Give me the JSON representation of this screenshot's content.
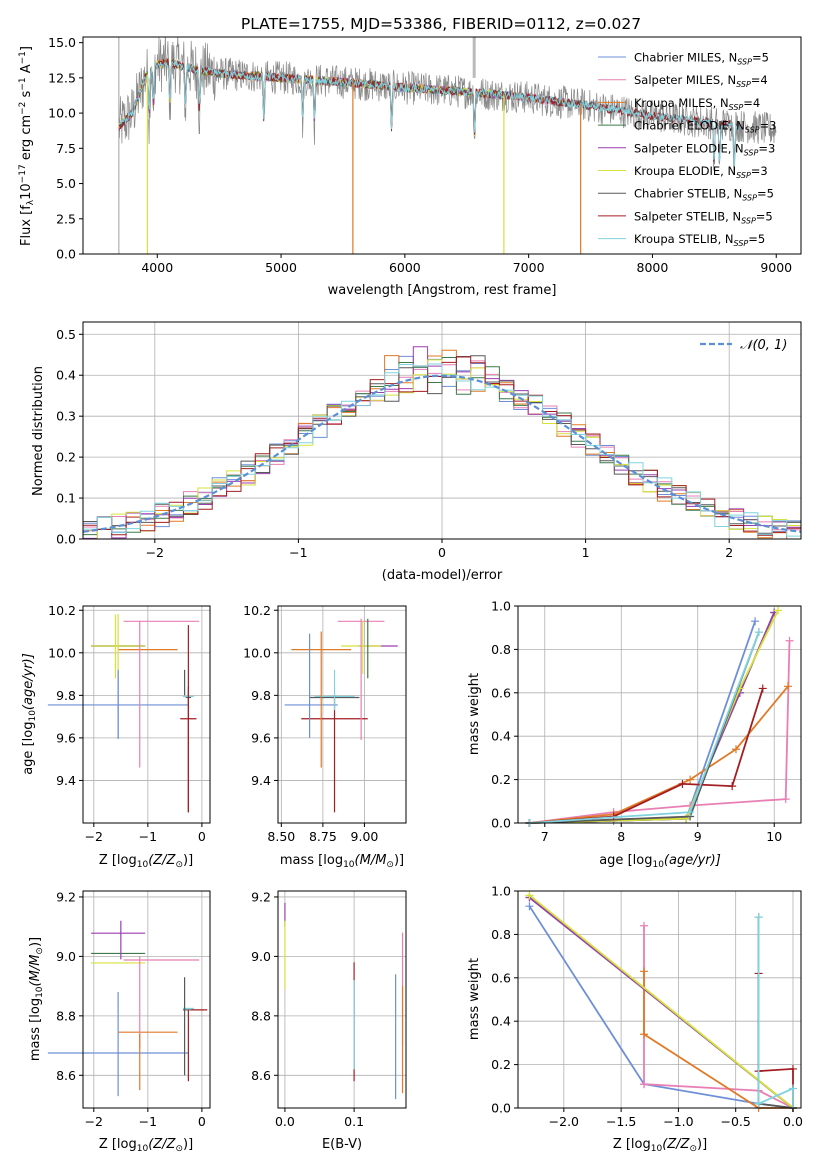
{
  "title": "PLATE=1755, MJD=53386, FIBERID=0112, z=0.027",
  "colors": {
    "Chabrier MILES": "#6e8fd8",
    "Salpeter MILES": "#e87fb4",
    "Kroupa MILES": "#e07a26",
    "Chabrier ELODIE": "#3f7a4a",
    "Salpeter ELODIE": "#9a3fb0",
    "Kroupa ELODIE": "#d6e23b",
    "Chabrier STELIB": "#595959",
    "Salpeter STELIB": "#a31e22",
    "Kroupa STELIB": "#7fd3df",
    "normal": "#5b8fd6",
    "data": "#888888"
  },
  "chart_data": [
    {
      "type": "line",
      "title": "PLATE=1755, MJD=53386, FIBERID=0112, z=0.027",
      "xlabel": "wavelength [Angstrom, rest frame]",
      "ylabel_main": "Flux [f",
      "ylabel_sub_lambda": "λ",
      "ylabel_mid": "10",
      "ylabel_exp1": "−17",
      "ylabel_rest": " erg cm",
      "ylabel_exp2": "−2",
      "ylabel_s": " s",
      "ylabel_exp3": "−1",
      "ylabel_A": " A",
      "ylabel_exp4": "−1",
      "ylabel_end": "]",
      "xlim": [
        3400,
        9200
      ],
      "ylim": [
        0,
        15.4
      ],
      "xticks": [
        "4000",
        "5000",
        "6000",
        "7000",
        "8000",
        "9000"
      ],
      "yticks": [
        "0.0",
        "2.5",
        "5.0",
        "7.5",
        "10.0",
        "12.5",
        "15.0"
      ],
      "grid": false,
      "legend_position": "top-right",
      "continuum_anchors": {
        "x": [
          3690,
          3800,
          3900,
          4000,
          4100,
          4300,
          4500,
          5000,
          5500,
          6000,
          6500,
          7000,
          7500,
          8000,
          8500,
          9000
        ],
        "y": [
          9.0,
          10.0,
          12.5,
          13.5,
          13.6,
          13.1,
          12.8,
          12.5,
          12.2,
          11.8,
          11.5,
          11.1,
          10.5,
          9.8,
          9.3,
          8.8
        ]
      },
      "absorption_lines_x": [
        3934,
        3969,
        4102,
        4227,
        4340,
        4861,
        5175,
        5270,
        5893,
        6563,
        8498,
        8542,
        8662
      ],
      "series": [
        {
          "name": "Chabrier MILES",
          "sub": "SSP",
          "n": "5",
          "xmax": 7400
        },
        {
          "name": "Salpeter MILES",
          "sub": "SSP",
          "n": "4",
          "xmax": 7400
        },
        {
          "name": "Kroupa MILES",
          "sub": "SSP",
          "n": "4",
          "xmax": 7420
        },
        {
          "name": "Chabrier ELODIE",
          "sub": "SSP",
          "n": "3",
          "xmax": 6800
        },
        {
          "name": "Salpeter ELODIE",
          "sub": "SSP",
          "n": "3",
          "xmax": 6800
        },
        {
          "name": "Kroupa ELODIE",
          "sub": "SSP",
          "n": "3",
          "xmax": 6800
        },
        {
          "name": "Chabrier STELIB",
          "sub": "SSP",
          "n": "5",
          "xmax": 8700
        },
        {
          "name": "Salpeter STELIB",
          "sub": "SSP",
          "n": "5",
          "xmax": 8700
        },
        {
          "name": "Kroupa STELIB",
          "sub": "SSP",
          "n": "5",
          "xmax": 8700
        }
      ]
    },
    {
      "type": "line",
      "xlabel": "(data-model)/error",
      "ylabel": "Normed distribution",
      "xlim": [
        -2.5,
        2.5
      ],
      "ylim": [
        0,
        0.53
      ],
      "xticks": [
        "−2",
        "−1",
        "0",
        "1",
        "2"
      ],
      "yticks": [
        "0.0",
        "0.1",
        "0.2",
        "0.3",
        "0.4",
        "0.5"
      ],
      "grid": true,
      "legend_position": "top-right",
      "legend_label": "𝒩(0, 1)",
      "bin_width": 0.1,
      "histograms": "step histograms for 9 model fits, approximately matching a standard normal"
    },
    {
      "type": "scatter",
      "xlabel": "Z [log",
      "xlabel_sub": "10",
      "xlabel_rest": "(Z/Z",
      "xlabel_sun": "⊙",
      "xlabel_end": ")]",
      "ylabel": "age  [log",
      "ylabel_sub": "10",
      "ylabel_rest": "(age/yr)]",
      "xlim": [
        -2.2,
        0.15
      ],
      "ylim": [
        9.2,
        10.22
      ],
      "xticks": [
        "−2",
        "−1",
        "0"
      ],
      "yticks": [
        "9.4",
        "9.6",
        "9.8",
        "10.0",
        "10.2"
      ],
      "points": [
        {
          "model": "Chabrier MILES",
          "x": -1.55,
          "xerr": 1.3,
          "y": 9.755,
          "yerr": 0.16
        },
        {
          "model": "Salpeter MILES",
          "x": -0.75,
          "xerr": 0.7,
          "y": 10.148,
          "yerr": 0.0
        },
        {
          "model": "Kroupa MILES",
          "x": -1.0,
          "xerr": 0.55,
          "y": 10.015,
          "yerr": 0.0
        },
        {
          "model": "Chabrier ELODIE",
          "x": -1.55,
          "xerr": 0.5,
          "y": 10.032,
          "yerr": 0.0
        },
        {
          "model": "Salpeter ELODIE",
          "x": -1.55,
          "xerr": 0.5,
          "y": 10.032,
          "yerr": 0.0
        },
        {
          "model": "Kroupa ELODIE",
          "x": -1.55,
          "xerr": 0.5,
          "y": 10.032,
          "yerr": 0.15
        },
        {
          "model": "Chabrier STELIB",
          "x": -0.25,
          "xerr": 0.05,
          "y": 9.79,
          "yerr": 0.03
        },
        {
          "model": "Salpeter STELIB",
          "x": -0.25,
          "xerr": 0.15,
          "y": 9.69,
          "yerr": 0.44
        },
        {
          "model": "Kroupa STELIB",
          "x": -0.25,
          "xerr": 0.1,
          "y": 9.795,
          "yerr": 0.04
        }
      ],
      "vertical_bars": [
        {
          "model": "Kroupa ELODIE",
          "x": -1.6,
          "y1": 9.88,
          "y2": 10.18
        },
        {
          "model": "Salpeter MILES",
          "x": -1.15,
          "y1": 9.46,
          "y2": 10.15
        },
        {
          "model": "Chabrier MILES",
          "x": -1.55,
          "y1": 9.6,
          "y2": 9.92
        },
        {
          "model": "Salpeter STELIB",
          "x": -0.25,
          "y1": 9.25,
          "y2": 9.84
        },
        {
          "model": "Chabrier STELIB",
          "x": -0.32,
          "y1": 9.8,
          "y2": 9.92
        }
      ]
    },
    {
      "type": "scatter",
      "xlabel": "mass [log",
      "xlabel_sub": "10",
      "xlabel_rest": "(M/M",
      "xlabel_sun": "⊙",
      "xlabel_end": ")]",
      "xlim": [
        8.48,
        9.25
      ],
      "ylim": [
        9.2,
        10.22
      ],
      "xticks": [
        "8.50",
        "8.75",
        "9.00"
      ],
      "yticks": [
        "9.4",
        "9.6",
        "9.8",
        "10.0",
        "10.2"
      ],
      "points": [
        {
          "model": "Chabrier MILES",
          "x": 8.68,
          "xerr": 0.16,
          "y": 9.755
        },
        {
          "model": "Salpeter MILES",
          "x": 8.98,
          "xerr": 0.14,
          "y": 10.148
        },
        {
          "model": "Kroupa MILES",
          "x": 8.74,
          "xerr": 0.18,
          "y": 10.015
        },
        {
          "model": "Salpeter ELODIE",
          "x": 9.08,
          "xerr": 0.12,
          "y": 10.032
        },
        {
          "model": "Kroupa ELODIE",
          "x": 8.98,
          "xerr": 0.12,
          "y": 10.032
        },
        {
          "model": "Chabrier STELIB",
          "x": 8.82,
          "xerr": 0.15,
          "y": 9.79
        },
        {
          "model": "Salpeter STELIB",
          "x": 8.82,
          "xerr": 0.2,
          "y": 9.69
        },
        {
          "model": "Kroupa STELIB",
          "x": 8.82,
          "xerr": 0.12,
          "y": 9.795
        }
      ],
      "vertical_bars": [
        {
          "model": "Chabrier MILES",
          "x": 8.67,
          "y1": 9.6,
          "y2": 10.09
        },
        {
          "model": "Kroupa MILES",
          "x": 8.74,
          "y1": 9.46,
          "y2": 10.1
        },
        {
          "model": "Salpeter STELIB",
          "x": 8.82,
          "y1": 9.25,
          "y2": 9.8
        },
        {
          "model": "Salpeter MILES",
          "x": 8.98,
          "y1": 9.59,
          "y2": 10.16
        },
        {
          "model": "Chabrier ELODIE",
          "x": 9.02,
          "y1": 9.88,
          "y2": 10.16
        },
        {
          "model": "Kroupa ELODIE",
          "x": 8.99,
          "y1": 9.9,
          "y2": 10.15
        },
        {
          "model": "Kroupa STELIB",
          "x": 8.82,
          "y1": 9.73,
          "y2": 9.92
        }
      ]
    },
    {
      "type": "line",
      "xlabel": "age  [log",
      "xlabel_sub": "10",
      "xlabel_rest": "(age/yr)]",
      "ylabel": "mass weight",
      "xlim": [
        6.65,
        10.35
      ],
      "ylim": [
        0,
        1.0
      ],
      "xticks": [
        "7",
        "8",
        "9",
        "10"
      ],
      "yticks": [
        "0.0",
        "0.2",
        "0.4",
        "0.6",
        "0.8",
        "1.0"
      ],
      "grid": true,
      "cumulative_series": [
        {
          "model": "Chabrier MILES",
          "x": [
            6.8,
            7.9,
            8.85,
            9.75
          ],
          "y": [
            0.0,
            0.01,
            0.02,
            0.93
          ]
        },
        {
          "model": "Salpeter MILES",
          "x": [
            6.8,
            7.9,
            8.9,
            10.15,
            10.2
          ],
          "y": [
            0.0,
            0.05,
            0.08,
            0.11,
            0.84
          ]
        },
        {
          "model": "Kroupa MILES",
          "x": [
            6.8,
            7.9,
            8.9,
            9.5,
            10.18
          ],
          "y": [
            0.0,
            0.04,
            0.2,
            0.34,
            0.63
          ]
        },
        {
          "model": "Chabrier ELODIE",
          "x": [
            6.8,
            8.85,
            9.55,
            10.0
          ],
          "y": [
            0.0,
            0.02,
            0.6,
            0.97
          ]
        },
        {
          "model": "Salpeter ELODIE",
          "x": [
            6.8,
            8.85,
            9.55,
            10.0
          ],
          "y": [
            0.0,
            0.02,
            0.6,
            0.97
          ]
        },
        {
          "model": "Kroupa ELODIE",
          "x": [
            6.8,
            8.85,
            9.55,
            10.05
          ],
          "y": [
            0.0,
            0.02,
            0.62,
            0.98
          ]
        },
        {
          "model": "Chabrier STELIB",
          "x": [
            6.8,
            8.9,
            9.8
          ],
          "y": [
            0.0,
            0.03,
            0.88
          ]
        },
        {
          "model": "Salpeter STELIB",
          "x": [
            6.8,
            7.9,
            8.8,
            9.45,
            9.85
          ],
          "y": [
            0.0,
            0.03,
            0.18,
            0.17,
            0.62
          ]
        },
        {
          "model": "Kroupa STELIB",
          "x": [
            6.8,
            8.9,
            9.8
          ],
          "y": [
            0.0,
            0.05,
            0.88
          ]
        }
      ]
    },
    {
      "type": "scatter",
      "xlabel": "Z [log",
      "xlabel_sub": "10",
      "xlabel_rest": "(Z/Z",
      "xlabel_sun": "⊙",
      "xlabel_end": ")]",
      "ylabel": "mass [log",
      "ylabel_sub": "10",
      "ylabel_rest": "(M/M",
      "ylabel_sun": "⊙",
      "ylabel_end": ")]",
      "xlim": [
        -2.2,
        0.15
      ],
      "ylim": [
        8.49,
        9.22
      ],
      "xticks": [
        "−2",
        "−1",
        "0"
      ],
      "yticks": [
        "8.6",
        "8.8",
        "9.0",
        "9.2"
      ],
      "points": [
        {
          "model": "Chabrier MILES",
          "x": -1.55,
          "xerr": 1.3,
          "y": 8.675
        },
        {
          "model": "Salpeter MILES",
          "x": -0.75,
          "xerr": 0.7,
          "y": 8.988
        },
        {
          "model": "Kroupa MILES",
          "x": -1.0,
          "xerr": 0.55,
          "y": 8.745
        },
        {
          "model": "Chabrier ELODIE",
          "x": -1.55,
          "xerr": 0.5,
          "y": 9.01
        },
        {
          "model": "Salpeter ELODIE",
          "x": -1.55,
          "xerr": 0.5,
          "y": 9.078
        },
        {
          "model": "Kroupa ELODIE",
          "x": -1.55,
          "xerr": 0.5,
          "y": 8.978
        },
        {
          "model": "Chabrier STELIB",
          "x": -0.25,
          "xerr": 0.1,
          "y": 8.82
        },
        {
          "model": "Salpeter STELIB",
          "x": -0.05,
          "xerr": 0.15,
          "y": 8.82
        },
        {
          "model": "Kroupa STELIB",
          "x": -0.25,
          "xerr": 0.1,
          "y": 8.825
        }
      ],
      "vertical_bars": [
        {
          "model": "Chabrier MILES",
          "x": -1.55,
          "y1": 8.53,
          "y2": 8.88
        },
        {
          "model": "Salpeter MILES",
          "x": -1.15,
          "y1": 8.69,
          "y2": 9.0
        },
        {
          "model": "Kroupa MILES",
          "x": -1.15,
          "y1": 8.55,
          "y2": 8.74
        },
        {
          "model": "Salpeter ELODIE",
          "x": -1.5,
          "y1": 8.99,
          "y2": 9.12
        },
        {
          "model": "Chabrier STELIB",
          "x": -0.32,
          "y1": 8.6,
          "y2": 8.93
        },
        {
          "model": "Salpeter STELIB",
          "x": -0.25,
          "y1": 8.58,
          "y2": 8.82
        }
      ]
    },
    {
      "type": "scatter",
      "xlabel": "E(B-V)",
      "xlim": [
        -0.01,
        0.175
      ],
      "ylim": [
        8.49,
        9.22
      ],
      "xticks": [
        "0.0",
        "0.1"
      ],
      "yticks": [
        "8.6",
        "8.8",
        "9.0",
        "9.2"
      ],
      "vertical_bars": [
        {
          "model": "Salpeter ELODIE",
          "x": 0.0,
          "y1": 9.1,
          "y2": 9.18
        },
        {
          "model": "Kroupa ELODIE",
          "x": 0.0,
          "y1": 8.89,
          "y2": 9.12
        },
        {
          "model": "Salpeter STELIB",
          "x": 0.1,
          "y1": 8.58,
          "y2": 8.98
        },
        {
          "model": "Kroupa STELIB",
          "x": 0.1,
          "y1": 8.62,
          "y2": 8.92
        },
        {
          "model": "Chabrier MILES",
          "x": 0.16,
          "y1": 8.52,
          "y2": 8.94
        },
        {
          "model": "Salpeter MILES",
          "x": 0.17,
          "y1": 8.7,
          "y2": 9.08
        },
        {
          "model": "Kroupa MILES",
          "x": 0.17,
          "y1": 8.54,
          "y2": 8.9
        }
      ]
    },
    {
      "type": "line",
      "xlabel": "Z [log",
      "xlabel_sub": "10",
      "xlabel_rest": "(Z/Z",
      "xlabel_sun": "⊙",
      "xlabel_end": ")]",
      "ylabel": "mass weight",
      "xlim": [
        -2.4,
        0.07
      ],
      "ylim": [
        0,
        1.0
      ],
      "xticks": [
        "−2.0",
        "−1.5",
        "−1.0",
        "−0.5",
        "0.0"
      ],
      "yticks": [
        "0.0",
        "0.2",
        "0.4",
        "0.6",
        "0.8",
        "1.0"
      ],
      "grid": true,
      "cumulative_series": [
        {
          "model": "Chabrier MILES",
          "x": [
            -2.3,
            -1.3,
            -0.3,
            0.0
          ],
          "y": [
            0.93,
            0.11,
            0.02,
            0.0
          ]
        },
        {
          "model": "Salpeter MILES",
          "x": [
            -1.3,
            -1.3,
            -0.3,
            0.0
          ],
          "y": [
            0.84,
            0.11,
            0.08,
            0.0
          ]
        },
        {
          "model": "Kroupa MILES",
          "x": [
            -1.3,
            -1.3,
            -0.3,
            0.0
          ],
          "y": [
            0.63,
            0.34,
            0.0,
            0.0
          ]
        },
        {
          "model": "Chabrier ELODIE",
          "x": [
            -2.3,
            0.0
          ],
          "y": [
            0.97,
            0.0
          ]
        },
        {
          "model": "Salpeter ELODIE",
          "x": [
            -2.3,
            0.0
          ],
          "y": [
            0.97,
            0.0
          ]
        },
        {
          "model": "Kroupa ELODIE",
          "x": [
            -2.3,
            0.0
          ],
          "y": [
            0.98,
            0.0
          ]
        },
        {
          "model": "Chabrier STELIB",
          "x": [
            -0.3,
            -0.3,
            0.0
          ],
          "y": [
            0.88,
            0.02,
            0.0
          ]
        },
        {
          "model": "Salpeter STELIB",
          "x": [
            -0.3,
            -0.3,
            0.0,
            0.0
          ],
          "y": [
            0.62,
            0.17,
            0.18,
            0.0
          ]
        },
        {
          "model": "Kroupa STELIB",
          "x": [
            -0.3,
            -0.3,
            0.0,
            0.0
          ],
          "y": [
            0.88,
            0.02,
            0.09,
            0.0
          ]
        }
      ]
    }
  ]
}
